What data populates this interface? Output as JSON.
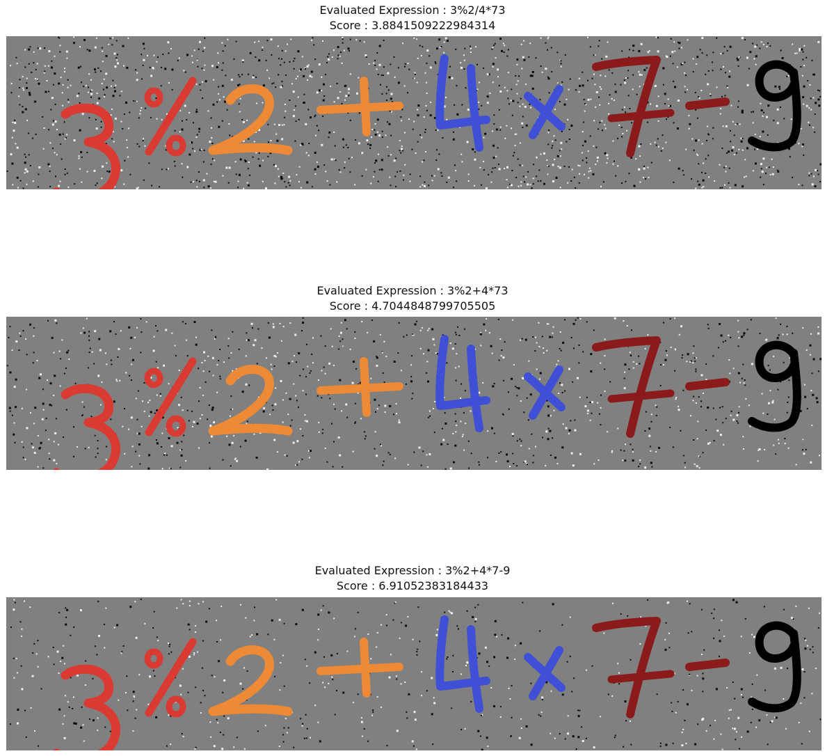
{
  "panels": [
    {
      "expression": "Evaluated Expression : 3%2/4*73",
      "score": "Score : 3.8841509222984314",
      "noise_density": "high"
    },
    {
      "expression": "Evaluated Expression : 3%2+4*73",
      "score": "Score : 4.7044848799705505",
      "noise_density": "medium"
    },
    {
      "expression": "Evaluated Expression : 3%2+4*7-9",
      "score": "Score : 6.91052383184433",
      "noise_density": "low"
    }
  ],
  "glyph_colors": {
    "three": "#d93a32",
    "percent": "#d93a32",
    "two": "#ee8a36",
    "plus": "#ee8a36",
    "four": "#3f4fd6",
    "times": "#3f4fd6",
    "seven": "#8b1a1a",
    "minus": "#8b1a1a",
    "nine": "#000000"
  },
  "background_color": "#808080"
}
